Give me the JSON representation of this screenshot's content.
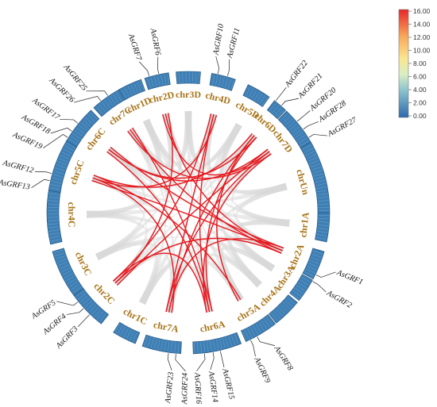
{
  "chromosomes": [
    "chr1A",
    "chr2A",
    "chr3A",
    "chr4A",
    "chr5A",
    "chr6A",
    "chr7A",
    "chr1C",
    "chr2C",
    "chr3C",
    "chr4C",
    "chr5C",
    "chr6C",
    "chr7C",
    "chr1D",
    "chr2D",
    "chr3D",
    "chr4D",
    "chr5D",
    "chr6D",
    "chr7D",
    "chrUn"
  ],
  "genes": [
    {
      "name": "AsGRF1",
      "chr": "chr2A"
    },
    {
      "name": "AsGRF2",
      "chr": "chr2A"
    },
    {
      "name": "AsGRF8",
      "chr": "chr5A"
    },
    {
      "name": "AsGRF9",
      "chr": "chr5A"
    },
    {
      "name": "AsGRF14",
      "chr": "chr6A"
    },
    {
      "name": "AsGRF15",
      "chr": "chr6A"
    },
    {
      "name": "AsGRF16",
      "chr": "chr6A"
    },
    {
      "name": "AsGRF23",
      "chr": "chr7A"
    },
    {
      "name": "AsGRF24",
      "chr": "chr7A"
    },
    {
      "name": "AsGRF3",
      "chr": "chr2C"
    },
    {
      "name": "AsGRF4",
      "chr": "chr2C"
    },
    {
      "name": "AsGRF5",
      "chr": "chr2C"
    },
    {
      "name": "AsGRF13",
      "chr": "chr5C"
    },
    {
      "name": "AsGRF12",
      "chr": "chr5C"
    },
    {
      "name": "AsGRF19",
      "chr": "chr6C"
    },
    {
      "name": "AsGRF18",
      "chr": "chr6C"
    },
    {
      "name": "AsGRF17",
      "chr": "chr6C"
    },
    {
      "name": "AsGRF26",
      "chr": "chr7C"
    },
    {
      "name": "AsGRF25",
      "chr": "chr7C"
    },
    {
      "name": "AsGRF7",
      "chr": "chr2D"
    },
    {
      "name": "AsGRF6",
      "chr": "chr2D"
    },
    {
      "name": "AsGRF10",
      "chr": "chr4D"
    },
    {
      "name": "AsGRF11",
      "chr": "chr4D"
    },
    {
      "name": "AsGRF22",
      "chr": "chr6D"
    },
    {
      "name": "AsGRF21",
      "chr": "chr6D"
    },
    {
      "name": "AsGRF20",
      "chr": "chr7D"
    },
    {
      "name": "AsGRF28",
      "chr": "chr7D"
    },
    {
      "name": "AsGRF27",
      "chr": "chr7D"
    }
  ],
  "links": [
    [
      "chr2D",
      "chr2A"
    ],
    [
      "chr2D",
      "chr2C"
    ],
    [
      "chr2D",
      "chr7D"
    ],
    [
      "chr4D",
      "chr6A"
    ],
    [
      "chr4D",
      "chr5C"
    ],
    [
      "chr4D",
      "chr2C"
    ],
    [
      "chr6D",
      "chr7A"
    ],
    [
      "chr6D",
      "chr6C"
    ],
    [
      "chr6D",
      "chr5C"
    ],
    [
      "chr7D",
      "chr6A"
    ],
    [
      "chr7D",
      "chr2C"
    ],
    [
      "chr7D",
      "chr7A"
    ],
    [
      "chr7C",
      "chr2A"
    ],
    [
      "chr7C",
      "chr6A"
    ],
    [
      "chr7C",
      "chr7D"
    ],
    [
      "chr6C",
      "chr2A"
    ],
    [
      "chr6C",
      "chr6A"
    ],
    [
      "chr6C",
      "chr7D"
    ],
    [
      "chr5C",
      "chr2A"
    ],
    [
      "chr5C",
      "chr7A"
    ],
    [
      "chr5C",
      "chr5A"
    ],
    [
      "chr2C",
      "chr2A"
    ],
    [
      "chr2C",
      "chr6A"
    ],
    [
      "chr7A",
      "chr2A"
    ],
    [
      "chr5A",
      "chr6D"
    ],
    [
      "chr6A",
      "chr6D"
    ],
    [
      "chr7A",
      "chr4D"
    ]
  ],
  "colorbar": {
    "ticks": [
      "16.00",
      "14.00",
      "12.00",
      "10.00",
      "8.00",
      "6.00",
      "4.00",
      "2.00",
      "0.00"
    ],
    "colors": [
      "#e8262a",
      "#f2683f",
      "#f8a85a",
      "#fbe08b",
      "#f4f7c6",
      "#c4e3cf",
      "#8cc3cf",
      "#5a96c3",
      "#2c68ac"
    ]
  },
  "colors": {
    "chr_block": "#3f7fb4",
    "chr_label": "#a87418",
    "link": "#e8191f",
    "background_link": "#d8d8d8"
  }
}
